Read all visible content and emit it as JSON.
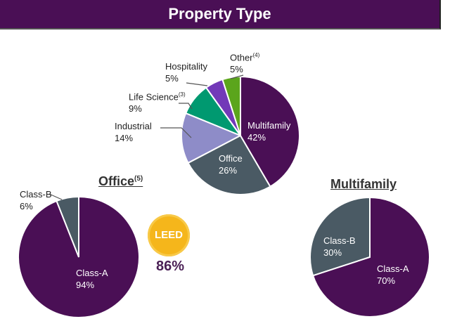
{
  "title": "Property Type",
  "leed": {
    "logo_text": "LEED",
    "value": "86%"
  },
  "chart_data": [
    {
      "type": "pie",
      "title": "Property Type",
      "categories": [
        "Multifamily",
        "Office",
        "Industrial",
        "Life Science",
        "Hospitality",
        "Other"
      ],
      "values": [
        42,
        26,
        14,
        9,
        5,
        5
      ],
      "labels": [
        "42%",
        "26%",
        "14%",
        "9%",
        "5%",
        "5%"
      ],
      "notes": {
        "Life Science": "(3)",
        "Other": "(4)"
      },
      "colors": [
        "#4a0f55",
        "#4a5a64",
        "#8e8cc8",
        "#009970",
        "#7239b8",
        "#5ba51c"
      ]
    },
    {
      "type": "pie",
      "title": "Office",
      "title_note": "(5)",
      "categories": [
        "Class-A",
        "Class-B"
      ],
      "values": [
        94,
        6
      ],
      "labels": [
        "94%",
        "6%"
      ],
      "colors": [
        "#4a0f55",
        "#4a5a64"
      ]
    },
    {
      "type": "pie",
      "title": "Multifamily",
      "categories": [
        "Class-A",
        "Class-B"
      ],
      "values": [
        70,
        30
      ],
      "labels": [
        "70%",
        "30%"
      ],
      "colors": [
        "#4a0f55",
        "#4a5a64"
      ]
    }
  ]
}
